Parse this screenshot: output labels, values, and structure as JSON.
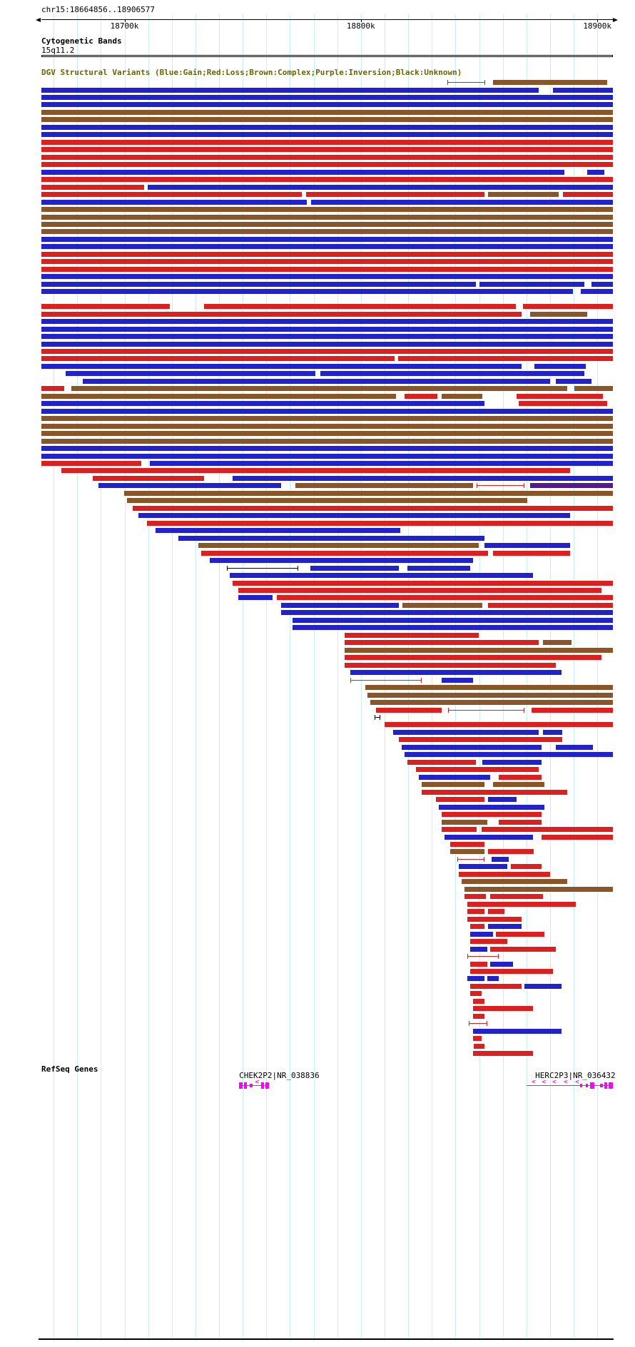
{
  "window": {
    "region": "chr15:18664856..18906577"
  },
  "sections": {
    "cytogenetic": {
      "title": "Cytogenetic Bands",
      "band": "15q11.2"
    },
    "dgv": {
      "title": "DGV Structural Variants (Blue:Gain;Red:Loss;Brown:Complex;Purple:Inversion;Black:Unknown)"
    },
    "refseq": {
      "title": "RefSeq Genes"
    }
  },
  "colors": {
    "gain": "#2222cc",
    "loss": "#dc2020",
    "complex": "#8a5529",
    "inversion": "#551a8b",
    "unknown": "#000000",
    "grid": "#c8f0f4",
    "gene": "#ff00ff",
    "dgv_title": "#666600"
  },
  "chart_data": {
    "type": "genome-track",
    "axis": {
      "chrom": "chr15",
      "start": 18664856,
      "end": 18906577,
      "grid_step": 10000,
      "ticks": [
        {
          "pos": 18700000,
          "label": "18700k"
        },
        {
          "pos": 18800000,
          "label": "18800k"
        },
        {
          "pos": 18900000,
          "label": "18900k"
        }
      ]
    },
    "legend": {
      "Blue": "Gain",
      "Red": "Loss",
      "Brown": "Complex",
      "Purple": "Inversion",
      "Black": "Unknown"
    },
    "variant_rows": [
      [
        [
          0.71,
          0.776,
          "r",
          "w"
        ],
        [
          0.79,
          0.99,
          "n"
        ]
      ],
      [
        [
          0.0,
          0.87,
          "b"
        ],
        [
          0.895,
          1.0,
          "b"
        ]
      ],
      [
        [
          0.0,
          1.0,
          "b"
        ]
      ],
      [
        [
          0.0,
          1.0,
          "b"
        ]
      ],
      [
        [
          0.0,
          1.0,
          "n"
        ]
      ],
      [
        [
          0.0,
          1.0,
          "n"
        ]
      ],
      [
        [
          0.0,
          1.0,
          "b"
        ]
      ],
      [
        [
          0.0,
          1.0,
          "b"
        ]
      ],
      [
        [
          0.0,
          1.0,
          "r"
        ]
      ],
      [
        [
          0.0,
          1.0,
          "r"
        ]
      ],
      [
        [
          0.0,
          1.0,
          "r"
        ]
      ],
      [
        [
          0.0,
          1.0,
          "r"
        ]
      ],
      [
        [
          0.0,
          0.915,
          "b"
        ],
        [
          0.955,
          0.985,
          "b"
        ]
      ],
      [
        [
          0.0,
          1.0,
          "r"
        ]
      ],
      [
        [
          0.0,
          0.18,
          "r"
        ],
        [
          0.186,
          1.0,
          "b"
        ]
      ],
      [
        [
          0.0,
          0.455,
          "r"
        ],
        [
          0.463,
          0.775,
          "r"
        ],
        [
          0.782,
          0.905,
          "n"
        ],
        [
          0.912,
          1.0,
          "r"
        ]
      ],
      [
        [
          0.0,
          0.464,
          "b"
        ],
        [
          0.472,
          1.0,
          "b"
        ]
      ],
      [
        [
          0.0,
          1.0,
          "n"
        ]
      ],
      [
        [
          0.0,
          1.0,
          "n"
        ]
      ],
      [
        [
          0.0,
          1.0,
          "n"
        ]
      ],
      [
        [
          0.0,
          1.0,
          "n"
        ]
      ],
      [
        [
          0.0,
          1.0,
          "b"
        ]
      ],
      [
        [
          0.0,
          1.0,
          "b"
        ]
      ],
      [
        [
          0.0,
          1.0,
          "r"
        ]
      ],
      [
        [
          0.0,
          1.0,
          "r"
        ]
      ],
      [
        [
          0.0,
          1.0,
          "r"
        ]
      ],
      [
        [
          0.0,
          1.0,
          "b"
        ]
      ],
      [
        [
          0.0,
          0.76,
          "b"
        ],
        [
          0.766,
          0.95,
          "b"
        ],
        [
          0.962,
          1.0,
          "b"
        ]
      ],
      [
        [
          0.0,
          0.93,
          "b"
        ],
        [
          0.944,
          1.0,
          "b"
        ]
      ],
      [],
      [
        [
          0.0,
          0.225,
          "r"
        ],
        [
          0.285,
          0.83,
          "r"
        ],
        [
          0.843,
          1.0,
          "r"
        ]
      ],
      [
        [
          0.0,
          0.84,
          "r"
        ],
        [
          0.855,
          0.955,
          "n"
        ]
      ],
      [
        [
          0.0,
          1.0,
          "b"
        ]
      ],
      [
        [
          0.0,
          1.0,
          "b"
        ]
      ],
      [
        [
          0.0,
          1.0,
          "b"
        ]
      ],
      [
        [
          0.0,
          1.0,
          "b"
        ]
      ],
      [
        [
          0.0,
          1.0,
          "r"
        ]
      ],
      [
        [
          0.0,
          0.618,
          "r"
        ],
        [
          0.624,
          1.0,
          "r"
        ]
      ],
      [
        [
          0.0,
          0.84,
          "b"
        ],
        [
          0.862,
          0.952,
          "b"
        ]
      ],
      [
        [
          0.042,
          0.48,
          "b"
        ],
        [
          0.488,
          0.95,
          "b"
        ]
      ],
      [
        [
          0.072,
          0.89,
          "b"
        ],
        [
          0.9,
          0.962,
          "b"
        ]
      ],
      [
        [
          0.0,
          0.04,
          "r"
        ],
        [
          0.052,
          0.92,
          "n"
        ],
        [
          0.932,
          1.0,
          "n"
        ]
      ],
      [
        [
          0.0,
          0.62,
          "n"
        ],
        [
          0.635,
          0.693,
          "r"
        ],
        [
          0.7,
          0.772,
          "n"
        ],
        [
          0.832,
          0.982,
          "r"
        ]
      ],
      [
        [
          0.0,
          0.775,
          "b"
        ],
        [
          0.835,
          0.99,
          "r"
        ]
      ],
      [
        [
          0.0,
          1.0,
          "b"
        ]
      ],
      [
        [
          0.0,
          1.0,
          "n"
        ]
      ],
      [
        [
          0.0,
          1.0,
          "n"
        ]
      ],
      [
        [
          0.0,
          1.0,
          "n"
        ]
      ],
      [
        [
          0.0,
          1.0,
          "n"
        ]
      ],
      [
        [
          0.0,
          1.0,
          "b"
        ]
      ],
      [
        [
          0.0,
          1.0,
          "b"
        ]
      ],
      [
        [
          0.0,
          0.175,
          "r"
        ],
        [
          0.19,
          1.0,
          "b"
        ]
      ],
      [
        [
          0.035,
          0.925,
          "r"
        ]
      ],
      [
        [
          0.09,
          0.285,
          "r"
        ],
        [
          0.335,
          1.0,
          "b"
        ]
      ],
      [
        [
          0.1,
          0.42,
          "b"
        ],
        [
          0.445,
          0.755,
          "n"
        ],
        [
          0.762,
          0.845,
          "r",
          "w"
        ],
        [
          0.855,
          1.0,
          "p"
        ]
      ],
      [
        [
          0.145,
          1.0,
          "n"
        ]
      ],
      [
        [
          0.15,
          0.85,
          "n"
        ]
      ],
      [
        [
          0.16,
          1.0,
          "r"
        ]
      ],
      [
        [
          0.17,
          0.925,
          "b"
        ]
      ],
      [
        [
          0.185,
          1.0,
          "r"
        ]
      ],
      [
        [
          0.2,
          0.628,
          "b"
        ]
      ],
      [
        [
          0.24,
          0.775,
          "b"
        ]
      ],
      [
        [
          0.275,
          0.765,
          "n"
        ],
        [
          0.775,
          0.925,
          "b"
        ]
      ],
      [
        [
          0.28,
          0.782,
          "r"
        ],
        [
          0.79,
          0.925,
          "r"
        ]
      ],
      [
        [
          0.295,
          0.755,
          "b"
        ]
      ],
      [
        [
          0.325,
          0.45,
          "k",
          "w"
        ],
        [
          0.47,
          0.625,
          "b"
        ],
        [
          0.64,
          0.75,
          "b"
        ]
      ],
      [
        [
          0.33,
          0.86,
          "b"
        ]
      ],
      [
        [
          0.335,
          1.0,
          "r"
        ]
      ],
      [
        [
          0.345,
          0.98,
          "r"
        ]
      ],
      [
        [
          0.345,
          0.405,
          "b"
        ],
        [
          0.412,
          1.0,
          "r"
        ]
      ],
      [
        [
          0.42,
          0.625,
          "b"
        ],
        [
          0.632,
          0.772,
          "n"
        ],
        [
          0.782,
          1.0,
          "r"
        ]
      ],
      [
        [
          0.42,
          1.0,
          "b"
        ]
      ],
      [
        [
          0.44,
          1.0,
          "b"
        ]
      ],
      [
        [
          0.44,
          1.0,
          "b"
        ]
      ],
      [
        [
          0.53,
          0.765,
          "r"
        ]
      ],
      [
        [
          0.53,
          0.87,
          "r"
        ],
        [
          0.878,
          0.928,
          "n"
        ]
      ],
      [
        [
          0.53,
          1.0,
          "n"
        ]
      ],
      [
        [
          0.53,
          0.98,
          "r"
        ]
      ],
      [
        [
          0.53,
          0.9,
          "r"
        ]
      ],
      [
        [
          0.54,
          0.91,
          "b"
        ]
      ],
      [
        [
          0.54,
          0.665,
          "r",
          "w"
        ],
        [
          0.7,
          0.755,
          "b"
        ]
      ],
      [
        [
          0.567,
          1.0,
          "n"
        ]
      ],
      [
        [
          0.57,
          1.0,
          "n"
        ]
      ],
      [
        [
          0.575,
          1.0,
          "n"
        ]
      ],
      [
        [
          0.585,
          0.7,
          "r"
        ],
        [
          0.712,
          0.845,
          "r",
          "w"
        ],
        [
          0.858,
          1.0,
          "r"
        ]
      ],
      [
        [
          0.583,
          0.593,
          "k",
          "w"
        ]
      ],
      [
        [
          0.6,
          1.0,
          "r"
        ]
      ],
      [
        [
          0.615,
          0.87,
          "b"
        ],
        [
          0.878,
          0.912,
          "b"
        ]
      ],
      [
        [
          0.625,
          0.912,
          "r"
        ]
      ],
      [
        [
          0.63,
          0.875,
          "b"
        ],
        [
          0.9,
          0.965,
          "b"
        ]
      ],
      [
        [
          0.635,
          1.0,
          "b"
        ]
      ],
      [
        [
          0.64,
          0.76,
          "r"
        ],
        [
          0.772,
          0.875,
          "b"
        ]
      ],
      [
        [
          0.655,
          0.87,
          "r"
        ]
      ],
      [
        [
          0.66,
          0.785,
          "b"
        ],
        [
          0.8,
          0.875,
          "r"
        ]
      ],
      [
        [
          0.665,
          0.775,
          "n"
        ],
        [
          0.79,
          0.88,
          "n"
        ]
      ],
      [
        [
          0.665,
          0.92,
          "r"
        ]
      ],
      [
        [
          0.69,
          0.775,
          "r"
        ],
        [
          0.782,
          0.832,
          "b"
        ]
      ],
      [
        [
          0.695,
          0.88,
          "b"
        ]
      ],
      [
        [
          0.7,
          0.875,
          "r"
        ]
      ],
      [
        [
          0.7,
          0.78,
          "n"
        ],
        [
          0.8,
          0.875,
          "r"
        ]
      ],
      [
        [
          0.7,
          0.762,
          "r"
        ],
        [
          0.77,
          1.0,
          "r"
        ]
      ],
      [
        [
          0.705,
          0.86,
          "b"
        ],
        [
          0.875,
          1.0,
          "r"
        ]
      ],
      [
        [
          0.715,
          0.775,
          "r"
        ]
      ],
      [
        [
          0.715,
          0.775,
          "n"
        ],
        [
          0.782,
          0.862,
          "r"
        ]
      ],
      [
        [
          0.728,
          0.775,
          "r",
          "w"
        ],
        [
          0.788,
          0.818,
          "b"
        ]
      ],
      [
        [
          0.73,
          0.815,
          "b"
        ],
        [
          0.822,
          0.875,
          "r"
        ]
      ],
      [
        [
          0.73,
          0.89,
          "r"
        ]
      ],
      [
        [
          0.735,
          0.92,
          "n"
        ]
      ],
      [
        [
          0.74,
          1.0,
          "n"
        ]
      ],
      [
        [
          0.74,
          0.778,
          "r"
        ],
        [
          0.785,
          0.878,
          "r"
        ]
      ],
      [
        [
          0.745,
          0.935,
          "r"
        ]
      ],
      [
        [
          0.745,
          0.775,
          "r"
        ],
        [
          0.782,
          0.81,
          "r"
        ]
      ],
      [
        [
          0.745,
          0.84,
          "r"
        ]
      ],
      [
        [
          0.75,
          0.775,
          "r"
        ],
        [
          0.782,
          0.84,
          "b"
        ]
      ],
      [
        [
          0.75,
          0.79,
          "b"
        ],
        [
          0.795,
          0.88,
          "r"
        ]
      ],
      [
        [
          0.75,
          0.815,
          "r"
        ]
      ],
      [
        [
          0.75,
          0.78,
          "b"
        ],
        [
          0.785,
          0.9,
          "r"
        ]
      ],
      [
        [
          0.745,
          0.8,
          "r",
          "w"
        ]
      ],
      [
        [
          0.75,
          0.78,
          "r"
        ],
        [
          0.785,
          0.825,
          "b"
        ]
      ],
      [
        [
          0.75,
          0.895,
          "r"
        ]
      ],
      [
        [
          0.745,
          0.775,
          "b"
        ],
        [
          0.78,
          0.8,
          "b"
        ]
      ],
      [
        [
          0.75,
          0.84,
          "r"
        ],
        [
          0.845,
          0.91,
          "b"
        ]
      ],
      [
        [
          0.75,
          0.77,
          "r"
        ]
      ],
      [
        [
          0.755,
          0.775,
          "r"
        ]
      ],
      [
        [
          0.755,
          0.86,
          "r"
        ]
      ],
      [
        [
          0.755,
          0.775,
          "r"
        ]
      ],
      [
        [
          0.748,
          0.78,
          "r",
          "w"
        ]
      ],
      [
        [
          0.755,
          0.91,
          "b"
        ]
      ],
      [
        [
          0.755,
          0.77,
          "r"
        ]
      ],
      [
        [
          0.757,
          0.775,
          "r"
        ]
      ],
      [
        [
          0.755,
          0.86,
          "r"
        ]
      ]
    ],
    "genes": [
      {
        "label": "CHEK2P2|NR_038836",
        "strand": "-",
        "label_left": 0.346,
        "line": [
          0.346,
          0.398
        ],
        "arrows": [
          0.374
        ],
        "exons": [
          [
            0.346,
            0.352,
            1
          ],
          [
            0.354,
            0.36,
            1
          ],
          [
            0.364,
            0.369,
            0
          ],
          [
            0.384,
            0.389,
            1
          ],
          [
            0.392,
            0.398,
            1
          ]
        ]
      },
      {
        "label": "HERC2P3|NR_036432",
        "strand": "-",
        "label_left": 0.864,
        "line": [
          0.849,
          1.0
        ],
        "arrows": [
          0.858,
          0.876,
          0.894,
          0.914,
          0.934
        ],
        "exons": [
          [
            0.943,
            0.947,
            0
          ],
          [
            0.952,
            0.956,
            0
          ],
          [
            0.96,
            0.968,
            1
          ],
          [
            0.977,
            0.982,
            0
          ],
          [
            0.985,
            0.99,
            1
          ],
          [
            0.992,
            1.0,
            1
          ]
        ]
      }
    ]
  }
}
